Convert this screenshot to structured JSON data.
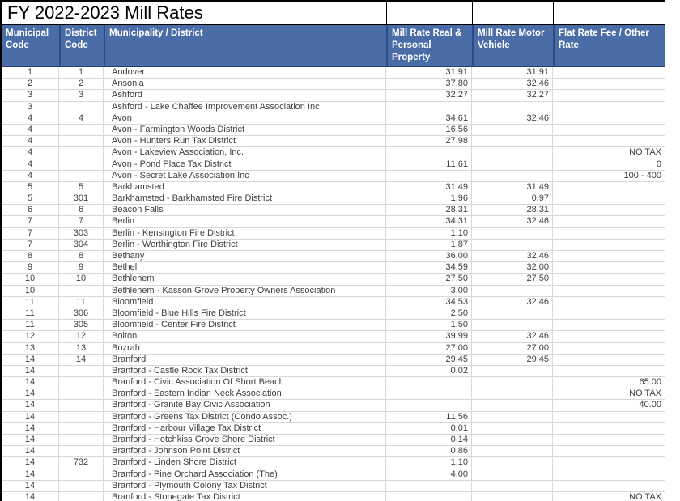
{
  "title": "FY 2022-2023 Mill Rates",
  "columns": [
    "Municipal Code",
    "District Code",
    "Municipality / District",
    "Mill Rate Real & Personal Property",
    "Mill Rate Motor Vehicle",
    "Flat Rate Fee / Other Rate"
  ],
  "colors": {
    "header_background": "#4a6da8",
    "header_border": "#2d4c85",
    "header_text": "#ffffff",
    "gridline": "#d8d8d8",
    "data_text": "#3f3f3f",
    "outer_border": "#000000"
  },
  "rows": [
    {
      "municipal_code": "1",
      "district_code": "1",
      "municipality": "Andover",
      "real_personal": "31.91",
      "motor_vehicle": "31.91",
      "flat_rate": ""
    },
    {
      "municipal_code": "2",
      "district_code": "2",
      "municipality": "Ansonia",
      "real_personal": "37.80",
      "motor_vehicle": "32.46",
      "flat_rate": ""
    },
    {
      "municipal_code": "3",
      "district_code": "3",
      "municipality": "Ashford",
      "real_personal": "32.27",
      "motor_vehicle": "32.27",
      "flat_rate": ""
    },
    {
      "municipal_code": "3",
      "district_code": "",
      "municipality": "Ashford - Lake Chaffee Improvement Association Inc",
      "real_personal": "",
      "motor_vehicle": "",
      "flat_rate": ""
    },
    {
      "municipal_code": "4",
      "district_code": "4",
      "municipality": "Avon",
      "real_personal": "34.61",
      "motor_vehicle": "32.46",
      "flat_rate": ""
    },
    {
      "municipal_code": "4",
      "district_code": "",
      "municipality": "Avon - Farmington Woods District",
      "real_personal": "16.56",
      "motor_vehicle": "",
      "flat_rate": ""
    },
    {
      "municipal_code": "4",
      "district_code": "",
      "municipality": "Avon - Hunters Run Tax District",
      "real_personal": "27.98",
      "motor_vehicle": "",
      "flat_rate": ""
    },
    {
      "municipal_code": "4",
      "district_code": "",
      "municipality": "Avon - Lakeview Association, Inc.",
      "real_personal": "",
      "motor_vehicle": "",
      "flat_rate": "NO TAX"
    },
    {
      "municipal_code": "4",
      "district_code": "",
      "municipality": "Avon - Pond Place Tax District",
      "real_personal": "11.61",
      "motor_vehicle": "",
      "flat_rate": "0"
    },
    {
      "municipal_code": "4",
      "district_code": "",
      "municipality": "Avon - Secret Lake Association Inc",
      "real_personal": "",
      "motor_vehicle": "",
      "flat_rate": "100 - 400"
    },
    {
      "municipal_code": "5",
      "district_code": "5",
      "municipality": "Barkhamsted",
      "real_personal": "31.49",
      "motor_vehicle": "31.49",
      "flat_rate": ""
    },
    {
      "municipal_code": "5",
      "district_code": "301",
      "municipality": "Barkhamsted - Barkhamsted Fire District",
      "real_personal": "1.96",
      "motor_vehicle": "0.97",
      "flat_rate": ""
    },
    {
      "municipal_code": "6",
      "district_code": "6",
      "municipality": "Beacon Falls",
      "real_personal": "28.31",
      "motor_vehicle": "28.31",
      "flat_rate": ""
    },
    {
      "municipal_code": "7",
      "district_code": "7",
      "municipality": "Berlin",
      "real_personal": "34.31",
      "motor_vehicle": "32.46",
      "flat_rate": ""
    },
    {
      "municipal_code": "7",
      "district_code": "303",
      "municipality": "Berlin - Kensington Fire District",
      "real_personal": "1.10",
      "motor_vehicle": "",
      "flat_rate": ""
    },
    {
      "municipal_code": "7",
      "district_code": "304",
      "municipality": "Berlin - Worthington Fire District",
      "real_personal": "1.87",
      "motor_vehicle": "",
      "flat_rate": ""
    },
    {
      "municipal_code": "8",
      "district_code": "8",
      "municipality": "Bethany",
      "real_personal": "36.00",
      "motor_vehicle": "32.46",
      "flat_rate": ""
    },
    {
      "municipal_code": "9",
      "district_code": "9",
      "municipality": "Bethel",
      "real_personal": "34.59",
      "motor_vehicle": "32.00",
      "flat_rate": ""
    },
    {
      "municipal_code": "10",
      "district_code": "10",
      "municipality": "Bethlehem",
      "real_personal": "27.50",
      "motor_vehicle": "27.50",
      "flat_rate": ""
    },
    {
      "municipal_code": "10",
      "district_code": "",
      "municipality": "Bethlehem - Kasson Grove Property Owners Association",
      "real_personal": "3.00",
      "motor_vehicle": "",
      "flat_rate": ""
    },
    {
      "municipal_code": "11",
      "district_code": "11",
      "municipality": "Bloomfield",
      "real_personal": "34.53",
      "motor_vehicle": "32.46",
      "flat_rate": ""
    },
    {
      "municipal_code": "11",
      "district_code": "306",
      "municipality": "Bloomfield - Blue Hills Fire District",
      "real_personal": "2.50",
      "motor_vehicle": "",
      "flat_rate": ""
    },
    {
      "municipal_code": "11",
      "district_code": "305",
      "municipality": "Bloomfield - Center Fire District",
      "real_personal": "1.50",
      "motor_vehicle": "",
      "flat_rate": ""
    },
    {
      "municipal_code": "12",
      "district_code": "12",
      "municipality": "Bolton",
      "real_personal": "39.99",
      "motor_vehicle": "32.46",
      "flat_rate": ""
    },
    {
      "municipal_code": "13",
      "district_code": "13",
      "municipality": "Bozrah",
      "real_personal": "27.00",
      "motor_vehicle": "27.00",
      "flat_rate": ""
    },
    {
      "municipal_code": "14",
      "district_code": "14",
      "municipality": "Branford",
      "real_personal": "29.45",
      "motor_vehicle": "29.45",
      "flat_rate": ""
    },
    {
      "municipal_code": "14",
      "district_code": "",
      "municipality": "Branford - Castle Rock Tax District",
      "real_personal": "0.02",
      "motor_vehicle": "",
      "flat_rate": ""
    },
    {
      "municipal_code": "14",
      "district_code": "",
      "municipality": "Branford - Civic Association Of Short Beach",
      "real_personal": "",
      "motor_vehicle": "",
      "flat_rate": "65.00"
    },
    {
      "municipal_code": "14",
      "district_code": "",
      "municipality": "Branford - Eastern Indian Neck Association",
      "real_personal": "",
      "motor_vehicle": "",
      "flat_rate": "NO TAX"
    },
    {
      "municipal_code": "14",
      "district_code": "",
      "municipality": "Branford - Granite Bay Civic Association",
      "real_personal": "",
      "motor_vehicle": "",
      "flat_rate": "40.00"
    },
    {
      "municipal_code": "14",
      "district_code": "",
      "municipality": "Branford - Greens Tax District (Condo Assoc.)",
      "real_personal": "11.56",
      "motor_vehicle": "",
      "flat_rate": ""
    },
    {
      "municipal_code": "14",
      "district_code": "",
      "municipality": "Branford - Harbour Village Tax District",
      "real_personal": "0.01",
      "motor_vehicle": "",
      "flat_rate": ""
    },
    {
      "municipal_code": "14",
      "district_code": "",
      "municipality": "Branford - Hotchkiss Grove Shore District",
      "real_personal": "0.14",
      "motor_vehicle": "",
      "flat_rate": ""
    },
    {
      "municipal_code": "14",
      "district_code": "",
      "municipality": "Branford - Johnson Point District",
      "real_personal": "0.86",
      "motor_vehicle": "",
      "flat_rate": ""
    },
    {
      "municipal_code": "14",
      "district_code": "732",
      "municipality": "Branford - Linden Shore District",
      "real_personal": "1.10",
      "motor_vehicle": "",
      "flat_rate": ""
    },
    {
      "municipal_code": "14",
      "district_code": "",
      "municipality": "Branford - Pine Orchard Association (The)",
      "real_personal": "4.00",
      "motor_vehicle": "",
      "flat_rate": ""
    },
    {
      "municipal_code": "14",
      "district_code": "",
      "municipality": "Branford - Plymouth Colony Tax District",
      "real_personal": "",
      "motor_vehicle": "",
      "flat_rate": ""
    },
    {
      "municipal_code": "14",
      "district_code": "",
      "municipality": "Branford - Stonegate Tax District",
      "real_personal": "",
      "motor_vehicle": "",
      "flat_rate": "NO TAX"
    }
  ]
}
